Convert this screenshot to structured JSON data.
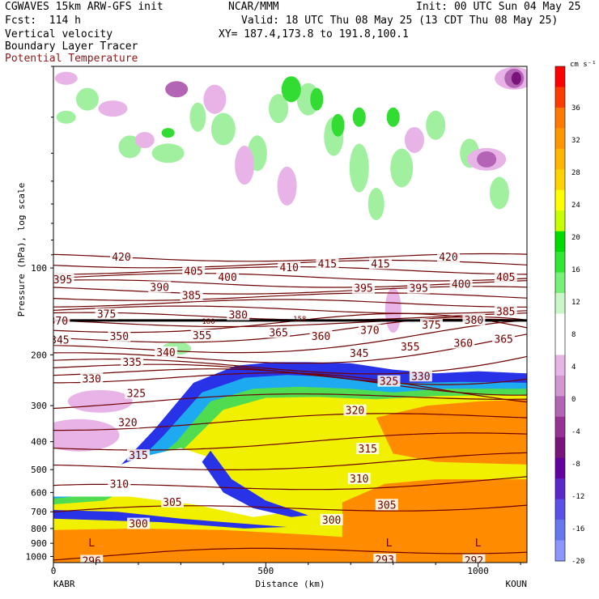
{
  "header": {
    "title_left": "CGWAVES 15km ARW-GFS init",
    "center": "NCAR/MMM",
    "init": "Init: 00 UTC Sun 04 May 25",
    "fcst": "Fcst:  114 h",
    "valid": "Valid: 18 UTC Thu 08 May 25 (13 CDT Thu 08 May 25)",
    "field1": "Vertical velocity",
    "xy": "XY= 187.4,173.8 to 191.8,100.1",
    "field2": "Boundary Layer Tracer",
    "field3": "Potential Temperature",
    "field3_color": "#8b1a1a"
  },
  "chart_data": {
    "type": "heatmap",
    "title": "",
    "xlabel": "Distance (km)",
    "ylabel": "Pressure (hPa), log scale",
    "xlim": [
      0,
      1115
    ],
    "ylim_log_pressure": [
      1050,
      20
    ],
    "x_ticks": [
      "0",
      "500",
      "1000"
    ],
    "x_tick_values": [
      0,
      500,
      1000
    ],
    "x_endpoints": [
      "KABR",
      "KOUN"
    ],
    "y_ticks": [
      "100",
      "200",
      "300",
      "400",
      "500",
      "600",
      "700",
      "800",
      "900",
      "1000"
    ],
    "y_tick_values": [
      100,
      200,
      300,
      400,
      500,
      600,
      700,
      800,
      900,
      1000
    ],
    "colorbar": {
      "units": "cm s⁻¹",
      "labels": [
        "36",
        "32",
        "28",
        "24",
        "20",
        "16",
        "12",
        "8",
        "4",
        "0",
        "-4",
        "-8",
        "-12",
        "-16",
        "-20"
      ],
      "colors": [
        "#ff0000",
        "#ff3c00",
        "#ff7800",
        "#ff9600",
        "#ffb400",
        "#ffd200",
        "#ffff00",
        "#c8ff00",
        "#00dc00",
        "#32e632",
        "#78f078",
        "#c8f8c8",
        "#ffffff",
        "#ffffff",
        "#e8b4e8",
        "#d296d2",
        "#b464b4",
        "#963296",
        "#78147a",
        "#6400a0",
        "#5a28c8",
        "#5a50e6",
        "#6478f0",
        "#8c96ff"
      ]
    },
    "theta_contours": [
      {
        "value": 296,
        "label": "296"
      },
      {
        "value": 300,
        "label": "300"
      },
      {
        "value": 305,
        "label": "305"
      },
      {
        "value": 310,
        "label": "310"
      },
      {
        "value": 315,
        "label": "315"
      },
      {
        "value": 320,
        "label": "320"
      },
      {
        "value": 325,
        "label": "325"
      },
      {
        "value": 330,
        "label": "330"
      },
      {
        "value": 335,
        "label": "335"
      },
      {
        "value": 340,
        "label": "340"
      },
      {
        "value": 345,
        "label": "345"
      },
      {
        "value": 350,
        "label": "350"
      },
      {
        "value": 355,
        "label": "355"
      },
      {
        "value": 360,
        "label": "360"
      },
      {
        "value": 365,
        "label": "365"
      },
      {
        "value": 370,
        "label": "370"
      },
      {
        "value": 375,
        "label": "375"
      },
      {
        "value": 380,
        "label": "380"
      },
      {
        "value": 385,
        "label": "385"
      },
      {
        "value": 390,
        "label": "390"
      },
      {
        "value": 395,
        "label": "395"
      },
      {
        "value": 400,
        "label": "400"
      },
      {
        "value": 405,
        "label": "405"
      },
      {
        "value": 410,
        "label": "410"
      },
      {
        "value": 415,
        "label": "415"
      },
      {
        "value": 420,
        "label": "420"
      }
    ],
    "contour_labels": [
      {
        "text": "420",
        "x": 160,
        "p": 92
      },
      {
        "text": "420",
        "x": 930,
        "p": 92
      },
      {
        "text": "395",
        "x": 22,
        "p": 110
      },
      {
        "text": "405",
        "x": 330,
        "p": 103
      },
      {
        "text": "400",
        "x": 410,
        "p": 108
      },
      {
        "text": "410",
        "x": 555,
        "p": 100
      },
      {
        "text": "415",
        "x": 645,
        "p": 97
      },
      {
        "text": "415",
        "x": 770,
        "p": 97
      },
      {
        "text": "390",
        "x": 250,
        "p": 117
      },
      {
        "text": "385",
        "x": 325,
        "p": 125
      },
      {
        "text": "395",
        "x": 730,
        "p": 118
      },
      {
        "text": "395",
        "x": 860,
        "p": 118
      },
      {
        "text": "400",
        "x": 960,
        "p": 114
      },
      {
        "text": "405",
        "x": 1065,
        "p": 108
      },
      {
        "text": "370",
        "x": 12,
        "p": 153
      },
      {
        "text": "375",
        "x": 125,
        "p": 145
      },
      {
        "text": "380",
        "x": 435,
        "p": 146
      },
      {
        "text": "385",
        "x": 1065,
        "p": 142
      },
      {
        "text": "370",
        "x": 745,
        "p": 165
      },
      {
        "text": "375",
        "x": 890,
        "p": 158
      },
      {
        "text": "380",
        "x": 990,
        "p": 152
      },
      {
        "text": "345",
        "x": 15,
        "p": 178
      },
      {
        "text": "350",
        "x": 155,
        "p": 173
      },
      {
        "text": "355",
        "x": 350,
        "p": 172
      },
      {
        "text": "365",
        "x": 530,
        "p": 168
      },
      {
        "text": "360",
        "x": 630,
        "p": 173
      },
      {
        "text": "355",
        "x": 840,
        "p": 188
      },
      {
        "text": "360",
        "x": 965,
        "p": 183
      },
      {
        "text": "365",
        "x": 1060,
        "p": 177
      },
      {
        "text": "340",
        "x": 265,
        "p": 197
      },
      {
        "text": "345",
        "x": 720,
        "p": 198
      },
      {
        "text": "335",
        "x": 185,
        "p": 213
      },
      {
        "text": "330",
        "x": 90,
        "p": 243
      },
      {
        "text": "325",
        "x": 195,
        "p": 273
      },
      {
        "text": "325",
        "x": 790,
        "p": 248
      },
      {
        "text": "330",
        "x": 865,
        "p": 238
      },
      {
        "text": "320",
        "x": 175,
        "p": 345
      },
      {
        "text": "320",
        "x": 710,
        "p": 313
      },
      {
        "text": "315",
        "x": 200,
        "p": 448
      },
      {
        "text": "315",
        "x": 740,
        "p": 425
      },
      {
        "text": "310",
        "x": 155,
        "p": 562
      },
      {
        "text": "310",
        "x": 720,
        "p": 540
      },
      {
        "text": "305",
        "x": 280,
        "p": 650
      },
      {
        "text": "305",
        "x": 785,
        "p": 665
      },
      {
        "text": "300",
        "x": 200,
        "p": 773
      },
      {
        "text": "300",
        "x": 655,
        "p": 750
      },
      {
        "text": "296",
        "x": 90,
        "p": 1040
      },
      {
        "text": "293",
        "x": 780,
        "p": 1030
      },
      {
        "text": "292",
        "x": 990,
        "p": 1035
      }
    ],
    "low_markers": [
      {
        "text": "L",
        "x": 90,
        "p": 900
      },
      {
        "text": "L",
        "x": 790,
        "p": 900
      },
      {
        "text": "L",
        "x": 1000,
        "p": 900
      }
    ],
    "tropopause_labels": [
      {
        "text": "180",
        "x": 365,
        "p": 153
      },
      {
        "text": "158",
        "x": 580,
        "p": 150
      }
    ],
    "tracer_polygons": [
      {
        "name": "tracer-blue",
        "color": "#2832e6",
        "points": [
          [
            0,
            560
          ],
          [
            60,
            560
          ],
          [
            160,
            480
          ],
          [
            240,
            360
          ],
          [
            330,
            250
          ],
          [
            430,
            218
          ],
          [
            520,
            212
          ],
          [
            600,
            212
          ],
          [
            700,
            214
          ],
          [
            800,
            225
          ],
          [
            900,
            232
          ],
          [
            1000,
            228
          ],
          [
            1115,
            232
          ],
          [
            1115,
            1050
          ],
          [
            0,
            1050
          ]
        ]
      },
      {
        "name": "tracer-cyan",
        "color": "#1eaaf0",
        "points": [
          [
            0,
            600
          ],
          [
            80,
            590
          ],
          [
            180,
            500
          ],
          [
            260,
            380
          ],
          [
            350,
            270
          ],
          [
            450,
            240
          ],
          [
            550,
            235
          ],
          [
            650,
            238
          ],
          [
            760,
            250
          ],
          [
            860,
            250
          ],
          [
            960,
            248
          ],
          [
            1115,
            250
          ],
          [
            1115,
            1050
          ],
          [
            0,
            1050
          ]
        ]
      },
      {
        "name": "tracer-green",
        "color": "#50dc50",
        "points": [
          [
            0,
            630
          ],
          [
            100,
            610
          ],
          [
            200,
            520
          ],
          [
            290,
            400
          ],
          [
            370,
            290
          ],
          [
            470,
            262
          ],
          [
            580,
            258
          ],
          [
            700,
            262
          ],
          [
            800,
            270
          ],
          [
            920,
            262
          ],
          [
            1115,
            262
          ],
          [
            1115,
            1050
          ],
          [
            0,
            1050
          ]
        ]
      },
      {
        "name": "tracer-yellow",
        "color": "#f0f000",
        "points": [
          [
            0,
            660
          ],
          [
            120,
            640
          ],
          [
            220,
            545
          ],
          [
            310,
            420
          ],
          [
            400,
            310
          ],
          [
            500,
            282
          ],
          [
            620,
            280
          ],
          [
            760,
            285
          ],
          [
            900,
            278
          ],
          [
            1115,
            275
          ],
          [
            1115,
            1050
          ],
          [
            0,
            1050
          ]
        ]
      },
      {
        "name": "tracer-orange-upper",
        "color": "#ff8c00",
        "points": [
          [
            760,
            330
          ],
          [
            880,
            300
          ],
          [
            1000,
            290
          ],
          [
            1115,
            285
          ],
          [
            1115,
            480
          ],
          [
            900,
            470
          ],
          [
            800,
            440
          ]
        ]
      },
      {
        "name": "tracer-orange-lower",
        "color": "#ff8c00",
        "points": [
          [
            680,
            650
          ],
          [
            780,
            560
          ],
          [
            900,
            540
          ],
          [
            1115,
            540
          ],
          [
            1115,
            1050
          ],
          [
            680,
            1050
          ]
        ]
      },
      {
        "name": "tracer-orange-surface",
        "color": "#ff8c00",
        "points": [
          [
            0,
            810
          ],
          [
            200,
            800
          ],
          [
            400,
            810
          ],
          [
            600,
            840
          ],
          [
            700,
            860
          ],
          [
            800,
            860
          ],
          [
            1115,
            850
          ],
          [
            1115,
            1050
          ],
          [
            0,
            1050
          ]
        ]
      },
      {
        "name": "tracer-white-gap",
        "color": "#ffffff",
        "points": [
          [
            0,
            560
          ],
          [
            100,
            520
          ],
          [
            200,
            455
          ],
          [
            300,
            420
          ],
          [
            380,
            460
          ],
          [
            430,
            560
          ],
          [
            500,
            640
          ],
          [
            560,
            700
          ],
          [
            470,
            730
          ],
          [
            330,
            660
          ],
          [
            180,
            620
          ],
          [
            0,
            620
          ]
        ]
      },
      {
        "name": "tracer-blue-tongue",
        "color": "#2832e6",
        "points": [
          [
            370,
            430
          ],
          [
            420,
            540
          ],
          [
            500,
            640
          ],
          [
            600,
            720
          ],
          [
            560,
            730
          ],
          [
            470,
            680
          ],
          [
            400,
            600
          ],
          [
            350,
            470
          ]
        ]
      },
      {
        "name": "tracer-blue-low",
        "color": "#2832e6",
        "points": [
          [
            0,
            690
          ],
          [
            150,
            700
          ],
          [
            300,
            740
          ],
          [
            450,
            770
          ],
          [
            550,
            790
          ],
          [
            450,
            800
          ],
          [
            250,
            760
          ],
          [
            0,
            740
          ]
        ]
      }
    ],
    "w_blobs": [
      {
        "color": "#a0f0a0",
        "x": 30,
        "p": 30,
        "rx": 12,
        "ry": 8
      },
      {
        "color": "#a0f0a0",
        "x": 80,
        "p": 26,
        "rx": 14,
        "ry": 14
      },
      {
        "color": "#a0f0a0",
        "x": 180,
        "p": 38,
        "rx": 14,
        "ry": 14
      },
      {
        "color": "#a0f0a0",
        "x": 270,
        "p": 40,
        "rx": 20,
        "ry": 12
      },
      {
        "color": "#a0f0a0",
        "x": 340,
        "p": 30,
        "rx": 10,
        "ry": 18
      },
      {
        "color": "#a0f0a0",
        "x": 400,
        "p": 33,
        "rx": 15,
        "ry": 20
      },
      {
        "color": "#a0f0a0",
        "x": 480,
        "p": 40,
        "rx": 12,
        "ry": 22
      },
      {
        "color": "#a0f0a0",
        "x": 530,
        "p": 28,
        "rx": 12,
        "ry": 18
      },
      {
        "color": "#a0f0a0",
        "x": 600,
        "p": 26,
        "rx": 14,
        "ry": 20
      },
      {
        "color": "#a0f0a0",
        "x": 660,
        "p": 35,
        "rx": 12,
        "ry": 24
      },
      {
        "color": "#a0f0a0",
        "x": 720,
        "p": 45,
        "rx": 12,
        "ry": 30
      },
      {
        "color": "#a0f0a0",
        "x": 760,
        "p": 60,
        "rx": 10,
        "ry": 20
      },
      {
        "color": "#a0f0a0",
        "x": 820,
        "p": 45,
        "rx": 14,
        "ry": 24
      },
      {
        "color": "#a0f0a0",
        "x": 900,
        "p": 32,
        "rx": 12,
        "ry": 18
      },
      {
        "color": "#a0f0a0",
        "x": 980,
        "p": 40,
        "rx": 12,
        "ry": 18
      },
      {
        "color": "#a0f0a0",
        "x": 1050,
        "p": 55,
        "rx": 12,
        "ry": 20
      },
      {
        "color": "#a0f0a0",
        "x": 290,
        "p": 190,
        "rx": 18,
        "ry": 8
      },
      {
        "color": "#32dc32",
        "x": 560,
        "p": 24,
        "rx": 12,
        "ry": 16
      },
      {
        "color": "#32dc32",
        "x": 620,
        "p": 26,
        "rx": 8,
        "ry": 14
      },
      {
        "color": "#32dc32",
        "x": 670,
        "p": 32,
        "rx": 8,
        "ry": 14
      },
      {
        "color": "#32dc32",
        "x": 720,
        "p": 30,
        "rx": 8,
        "ry": 12
      },
      {
        "color": "#32dc32",
        "x": 800,
        "p": 30,
        "rx": 8,
        "ry": 12
      },
      {
        "color": "#32dc32",
        "x": 270,
        "p": 34,
        "rx": 8,
        "ry": 6
      },
      {
        "color": "#e8b4e8",
        "x": 30,
        "p": 22,
        "rx": 14,
        "ry": 8
      },
      {
        "color": "#e8b4e8",
        "x": 140,
        "p": 28,
        "rx": 18,
        "ry": 10
      },
      {
        "color": "#e8b4e8",
        "x": 215,
        "p": 36,
        "rx": 12,
        "ry": 10
      },
      {
        "color": "#e8b4e8",
        "x": 380,
        "p": 26,
        "rx": 14,
        "ry": 18
      },
      {
        "color": "#e8b4e8",
        "x": 450,
        "p": 44,
        "rx": 12,
        "ry": 24
      },
      {
        "color": "#e8b4e8",
        "x": 550,
        "p": 52,
        "rx": 12,
        "ry": 24
      },
      {
        "color": "#e8b4e8",
        "x": 850,
        "p": 36,
        "rx": 12,
        "ry": 16
      },
      {
        "color": "#e8b4e8",
        "x": 1020,
        "p": 42,
        "rx": 24,
        "ry": 14
      },
      {
        "color": "#e8b4e8",
        "x": 1085,
        "p": 22,
        "rx": 24,
        "ry": 14
      },
      {
        "color": "#e8b4e8",
        "x": 60,
        "p": 380,
        "rx": 50,
        "ry": 20
      },
      {
        "color": "#e8b4e8",
        "x": 110,
        "p": 290,
        "rx": 40,
        "ry": 14
      },
      {
        "color": "#e8b4e8",
        "x": 800,
        "p": 140,
        "rx": 10,
        "ry": 28
      },
      {
        "color": "#b464b4",
        "x": 290,
        "p": 24,
        "rx": 14,
        "ry": 10
      },
      {
        "color": "#b464b4",
        "x": 1020,
        "p": 42,
        "rx": 12,
        "ry": 10
      },
      {
        "color": "#b464b4",
        "x": 1085,
        "p": 22,
        "rx": 12,
        "ry": 12
      },
      {
        "color": "#78147a",
        "x": 1090,
        "p": 22,
        "rx": 6,
        "ry": 8
      }
    ],
    "tropopause_line_p": 152
  },
  "colors": {
    "contour": "#6e0000",
    "axis": "#000000"
  }
}
